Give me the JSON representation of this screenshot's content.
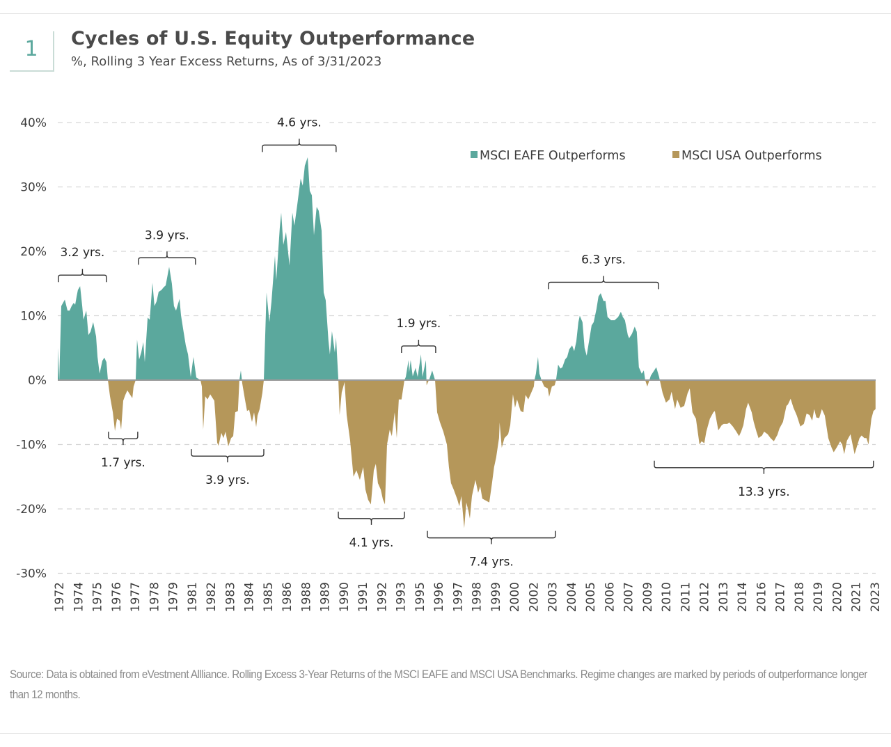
{
  "header": {
    "number": "1",
    "title": "Cycles of U.S. Equity Outperformance",
    "subtitle": "%, Rolling 3 Year Excess Returns, As of 3/31/2023"
  },
  "footer": {
    "source": "Source: Data is obtained from eVestment Allliance. Rolling Excess 3-Year Returns of the MSCI EAFE and MSCI USA Benchmarks. Regime changes are marked by periods of outperformance longer than 12 months."
  },
  "chart_data": {
    "type": "area",
    "title": "Cycles of U.S. Equity Outperformance",
    "subtitle": "%, Rolling 3 Year Excess Returns, As of 3/31/2023",
    "xlabel": "",
    "ylabel": "",
    "xlim": [
      1972.0,
      2023.25
    ],
    "ylim": [
      -30,
      40
    ],
    "grid": true,
    "legend_position": "top-right",
    "y_ticks": [
      40,
      30,
      20,
      10,
      0,
      -10,
      -20,
      -30
    ],
    "y_tick_labels": [
      "40%",
      "30%",
      "20%",
      "10%",
      "0%",
      "-10%",
      "-20%",
      "-30%"
    ],
    "x_tick_labels": [
      "1972",
      "1974",
      "1975",
      "1976",
      "1977",
      "1978",
      "1979",
      "1981",
      "1982",
      "1983",
      "1984",
      "1985",
      "1986",
      "1988",
      "1989",
      "1990",
      "1991",
      "1992",
      "1993",
      "1995",
      "1996",
      "1997",
      "1998",
      "1999",
      "2000",
      "2002",
      "2003",
      "2004",
      "2005",
      "2006",
      "2007",
      "2009",
      "2010",
      "2011",
      "2012",
      "2013",
      "2014",
      "2016",
      "2017",
      "2018",
      "2019",
      "2020",
      "2021",
      "2023"
    ],
    "legend": [
      {
        "name": "MSCI EAFE Outperforms",
        "color": "#5ba89d",
        "sign": "positive"
      },
      {
        "name": "MSCI USA Outperforms",
        "color": "#b5975a",
        "sign": "negative"
      }
    ],
    "series_points": [
      [
        1972.0,
        5
      ],
      [
        1972.09,
        0
      ],
      [
        1972.22,
        11.5
      ],
      [
        1972.44,
        12.5
      ],
      [
        1972.61,
        10.8
      ],
      [
        1972.74,
        10.8
      ],
      [
        1972.87,
        11.5
      ],
      [
        1973.0,
        12
      ],
      [
        1973.09,
        11.7
      ],
      [
        1973.18,
        13
      ],
      [
        1973.26,
        14
      ],
      [
        1973.4,
        14.6
      ],
      [
        1973.53,
        11.5
      ],
      [
        1973.61,
        9.4
      ],
      [
        1973.79,
        10.8
      ],
      [
        1973.92,
        7
      ],
      [
        1974.05,
        7.5
      ],
      [
        1974.22,
        9
      ],
      [
        1974.4,
        6.8
      ],
      [
        1974.49,
        3.6
      ],
      [
        1974.62,
        1
      ],
      [
        1974.79,
        3
      ],
      [
        1974.92,
        3.5
      ],
      [
        1975.05,
        2.8
      ],
      [
        1975.14,
        0
      ],
      [
        1975.27,
        -2.5
      ],
      [
        1975.45,
        -5
      ],
      [
        1975.58,
        -7.9
      ],
      [
        1975.71,
        -6
      ],
      [
        1975.88,
        -6.3
      ],
      [
        1975.97,
        -7.7
      ],
      [
        1976.1,
        -3.2
      ],
      [
        1976.23,
        -2.3
      ],
      [
        1976.36,
        -1.6
      ],
      [
        1976.54,
        -2.3
      ],
      [
        1976.67,
        -2.8
      ],
      [
        1976.75,
        -1
      ],
      [
        1976.88,
        0
      ],
      [
        1976.97,
        6.3
      ],
      [
        1977.1,
        3.2
      ],
      [
        1977.23,
        4.3
      ],
      [
        1977.36,
        5.9
      ],
      [
        1977.45,
        2.8
      ],
      [
        1977.63,
        9.7
      ],
      [
        1977.76,
        9.4
      ],
      [
        1977.93,
        15.1
      ],
      [
        1978.06,
        11.5
      ],
      [
        1978.19,
        12.2
      ],
      [
        1978.32,
        13.7
      ],
      [
        1978.5,
        14
      ],
      [
        1978.63,
        14.4
      ],
      [
        1978.76,
        14.7
      ],
      [
        1978.98,
        17.6
      ],
      [
        1979.15,
        15
      ],
      [
        1979.28,
        11.5
      ],
      [
        1979.41,
        10.8
      ],
      [
        1979.63,
        12.6
      ],
      [
        1979.72,
        10.1
      ],
      [
        1979.85,
        8
      ],
      [
        1980.02,
        5.4
      ],
      [
        1980.16,
        4
      ],
      [
        1980.33,
        0.5
      ],
      [
        1980.5,
        3.6
      ],
      [
        1980.68,
        0.4
      ],
      [
        1980.94,
        0
      ],
      [
        1981.03,
        -1
      ],
      [
        1981.11,
        -7.7
      ],
      [
        1981.24,
        -2.5
      ],
      [
        1981.38,
        -3
      ],
      [
        1981.55,
        -2.2
      ],
      [
        1981.68,
        -2.7
      ],
      [
        1981.81,
        -3.2
      ],
      [
        1981.99,
        -9.7
      ],
      [
        1982.07,
        -10.2
      ],
      [
        1982.25,
        -8.2
      ],
      [
        1982.38,
        -9
      ],
      [
        1982.51,
        -8
      ],
      [
        1982.68,
        -10.3
      ],
      [
        1982.86,
        -9
      ],
      [
        1982.99,
        -8.7
      ],
      [
        1983.12,
        -5
      ],
      [
        1983.29,
        -4.8
      ],
      [
        1983.38,
        0
      ],
      [
        1983.47,
        1.5
      ],
      [
        1983.56,
        -0.5
      ],
      [
        1983.73,
        -3
      ],
      [
        1983.86,
        -4.8
      ],
      [
        1983.99,
        -4.6
      ],
      [
        1984.17,
        -6.5
      ],
      [
        1984.3,
        -5
      ],
      [
        1984.43,
        -7.3
      ],
      [
        1984.52,
        -5.5
      ],
      [
        1984.65,
        -4.5
      ],
      [
        1984.82,
        -2
      ],
      [
        1984.91,
        0
      ],
      [
        1985.08,
        13.6
      ],
      [
        1985.26,
        9
      ],
      [
        1985.39,
        12.2
      ],
      [
        1985.61,
        19.3
      ],
      [
        1985.69,
        15.5
      ],
      [
        1985.91,
        23.6
      ],
      [
        1986.0,
        26
      ],
      [
        1986.13,
        21
      ],
      [
        1986.3,
        23
      ],
      [
        1986.52,
        17.8
      ],
      [
        1986.7,
        26
      ],
      [
        1986.83,
        24
      ],
      [
        1987.0,
        27.1
      ],
      [
        1987.22,
        31.3
      ],
      [
        1987.35,
        30.2
      ],
      [
        1987.48,
        33.3
      ],
      [
        1987.66,
        34.6
      ],
      [
        1987.79,
        29.4
      ],
      [
        1987.92,
        28.7
      ],
      [
        1988.05,
        22.5
      ],
      [
        1988.22,
        26.9
      ],
      [
        1988.35,
        26.3
      ],
      [
        1988.53,
        23.2
      ],
      [
        1988.66,
        13.6
      ],
      [
        1988.79,
        12.4
      ],
      [
        1988.96,
        6.2
      ],
      [
        1989.05,
        4
      ],
      [
        1989.18,
        7.6
      ],
      [
        1989.36,
        4.3
      ],
      [
        1989.44,
        6.6
      ],
      [
        1989.58,
        0
      ],
      [
        1989.66,
        -5.4
      ],
      [
        1989.79,
        -1.9
      ],
      [
        1989.97,
        -0.3
      ],
      [
        1990.1,
        -5.4
      ],
      [
        1990.32,
        -9.4
      ],
      [
        1990.53,
        -15
      ],
      [
        1990.71,
        -14
      ],
      [
        1990.93,
        -15.5
      ],
      [
        1991.14,
        -13.5
      ],
      [
        1991.28,
        -17
      ],
      [
        1991.45,
        -18.6
      ],
      [
        1991.62,
        -19.3
      ],
      [
        1991.8,
        -14
      ],
      [
        1991.93,
        -13
      ],
      [
        1992.06,
        -16
      ],
      [
        1992.24,
        -17
      ],
      [
        1992.37,
        -18.5
      ],
      [
        1992.5,
        -19.3
      ],
      [
        1992.63,
        -10
      ],
      [
        1992.8,
        -7.7
      ],
      [
        1992.93,
        -8.7
      ],
      [
        1993.11,
        -5
      ],
      [
        1993.24,
        -9
      ],
      [
        1993.37,
        -3
      ],
      [
        1993.54,
        -3
      ],
      [
        1993.72,
        0
      ],
      [
        1993.81,
        0.5
      ],
      [
        1993.98,
        3.1
      ],
      [
        1994.02,
        1.2
      ],
      [
        1994.11,
        3.1
      ],
      [
        1994.24,
        0.6
      ],
      [
        1994.42,
        1.9
      ],
      [
        1994.55,
        0.5
      ],
      [
        1994.76,
        4
      ],
      [
        1994.85,
        0.5
      ],
      [
        1995.07,
        3.1
      ],
      [
        1995.11,
        -0.8
      ],
      [
        1995.29,
        0.2
      ],
      [
        1995.46,
        1.5
      ],
      [
        1995.64,
        0
      ],
      [
        1995.77,
        -5
      ],
      [
        1995.94,
        -6.5
      ],
      [
        1996.16,
        -8
      ],
      [
        1996.38,
        -10
      ],
      [
        1996.51,
        -13.5
      ],
      [
        1996.64,
        -16
      ],
      [
        1996.81,
        -17
      ],
      [
        1997.03,
        -18.5
      ],
      [
        1997.16,
        -19.6
      ],
      [
        1997.29,
        -18
      ],
      [
        1997.47,
        -23
      ],
      [
        1997.6,
        -19
      ],
      [
        1997.73,
        -20.3
      ],
      [
        1997.82,
        -21.5
      ],
      [
        1997.95,
        -18
      ],
      [
        1998.17,
        -15.5
      ],
      [
        1998.34,
        -17.5
      ],
      [
        1998.47,
        -16.5
      ],
      [
        1998.6,
        -18.4
      ],
      [
        1998.82,
        -18.7
      ],
      [
        1999.04,
        -19
      ],
      [
        1999.21,
        -16
      ],
      [
        1999.34,
        -13.5
      ],
      [
        1999.47,
        -12
      ],
      [
        1999.65,
        -9
      ],
      [
        1999.69,
        -6.6
      ],
      [
        1999.82,
        -10.5
      ],
      [
        1999.99,
        -9
      ],
      [
        2000.22,
        -8.4
      ],
      [
        2000.35,
        -7
      ],
      [
        2000.52,
        -2.2
      ],
      [
        2000.65,
        -4.3
      ],
      [
        2000.78,
        -3
      ],
      [
        2001.0,
        -4.8
      ],
      [
        2001.17,
        -5
      ],
      [
        2001.31,
        -2.3
      ],
      [
        2001.48,
        -3
      ],
      [
        2001.66,
        -2
      ],
      [
        2001.83,
        -1
      ],
      [
        2001.87,
        0
      ],
      [
        2001.96,
        1
      ],
      [
        2002.09,
        3.6
      ],
      [
        2002.18,
        1
      ],
      [
        2002.31,
        0
      ],
      [
        2002.48,
        -1
      ],
      [
        2002.7,
        -1.3
      ],
      [
        2002.79,
        -2.6
      ],
      [
        2002.96,
        -1
      ],
      [
        2003.14,
        -0.8
      ],
      [
        2003.22,
        0
      ],
      [
        2003.35,
        2.4
      ],
      [
        2003.49,
        1.8
      ],
      [
        2003.62,
        2
      ],
      [
        2003.79,
        3.2
      ],
      [
        2003.92,
        3.6
      ],
      [
        2004.05,
        4.8
      ],
      [
        2004.23,
        5.4
      ],
      [
        2004.36,
        4.5
      ],
      [
        2004.49,
        6
      ],
      [
        2004.62,
        9
      ],
      [
        2004.71,
        10
      ],
      [
        2004.88,
        9
      ],
      [
        2005.01,
        5
      ],
      [
        2005.14,
        3.8
      ],
      [
        2005.32,
        6.5
      ],
      [
        2005.45,
        8.5
      ],
      [
        2005.58,
        9
      ],
      [
        2005.75,
        11
      ],
      [
        2005.88,
        13
      ],
      [
        2006.02,
        13.5
      ],
      [
        2006.19,
        12.3
      ],
      [
        2006.32,
        12.3
      ],
      [
        2006.45,
        9.8
      ],
      [
        2006.67,
        9.3
      ],
      [
        2006.89,
        9.3
      ],
      [
        2007.11,
        9.8
      ],
      [
        2007.28,
        10.6
      ],
      [
        2007.41,
        9.8
      ],
      [
        2007.54,
        9.3
      ],
      [
        2007.72,
        7
      ],
      [
        2007.8,
        6.5
      ],
      [
        2007.98,
        7.2
      ],
      [
        2008.15,
        8.3
      ],
      [
        2008.28,
        7.5
      ],
      [
        2008.41,
        2
      ],
      [
        2008.59,
        1
      ],
      [
        2008.72,
        1.5
      ],
      [
        2008.81,
        0
      ],
      [
        2008.94,
        -1
      ],
      [
        2009.07,
        0
      ],
      [
        2009.16,
        0.7
      ],
      [
        2009.37,
        1.5
      ],
      [
        2009.5,
        2
      ],
      [
        2009.68,
        0.5
      ],
      [
        2009.72,
        0
      ],
      [
        2009.9,
        -2
      ],
      [
        2010.11,
        -3.5
      ],
      [
        2010.33,
        -3
      ],
      [
        2010.46,
        -1.8
      ],
      [
        2010.68,
        -4.5
      ],
      [
        2010.81,
        -3
      ],
      [
        2011.03,
        -4.3
      ],
      [
        2011.25,
        -4
      ],
      [
        2011.47,
        -2
      ],
      [
        2011.6,
        -1.3
      ],
      [
        2011.77,
        -5
      ],
      [
        2011.99,
        -6
      ],
      [
        2012.21,
        -10
      ],
      [
        2012.34,
        -9.5
      ],
      [
        2012.51,
        -9.8
      ],
      [
        2012.64,
        -8
      ],
      [
        2012.86,
        -6
      ],
      [
        2013.08,
        -5
      ],
      [
        2013.17,
        -4.8
      ],
      [
        2013.39,
        -7.8
      ],
      [
        2013.6,
        -7
      ],
      [
        2013.73,
        -6.8
      ],
      [
        2013.95,
        -6.8
      ],
      [
        2014.08,
        -6.6
      ],
      [
        2014.3,
        -7.2
      ],
      [
        2014.52,
        -8
      ],
      [
        2014.69,
        -8.7
      ],
      [
        2014.82,
        -8
      ],
      [
        2014.96,
        -7
      ],
      [
        2015.13,
        -4.5
      ],
      [
        2015.26,
        -3.5
      ],
      [
        2015.48,
        -5
      ],
      [
        2015.61,
        -6.5
      ],
      [
        2015.78,
        -8
      ],
      [
        2015.91,
        -9
      ],
      [
        2016.13,
        -8.6
      ],
      [
        2016.26,
        -8
      ],
      [
        2016.48,
        -8.4
      ],
      [
        2016.66,
        -9
      ],
      [
        2016.87,
        -9.5
      ],
      [
        2017.09,
        -8.5
      ],
      [
        2017.22,
        -7.5
      ],
      [
        2017.44,
        -6.5
      ],
      [
        2017.66,
        -4
      ],
      [
        2017.75,
        -3.8
      ],
      [
        2017.92,
        -2.9
      ],
      [
        2018.1,
        -4.3
      ],
      [
        2018.31,
        -5.5
      ],
      [
        2018.53,
        -7.2
      ],
      [
        2018.75,
        -6.8
      ],
      [
        2018.92,
        -5.2
      ],
      [
        2019.1,
        -5.4
      ],
      [
        2019.27,
        -6.3
      ],
      [
        2019.4,
        -4.5
      ],
      [
        2019.53,
        -5.8
      ],
      [
        2019.71,
        -5.9
      ],
      [
        2019.88,
        -4.5
      ],
      [
        2020.06,
        -5.5
      ],
      [
        2020.28,
        -9
      ],
      [
        2020.49,
        -10.5
      ],
      [
        2020.62,
        -11.2
      ],
      [
        2020.8,
        -10.5
      ],
      [
        2021.02,
        -9.5
      ],
      [
        2021.15,
        -10
      ],
      [
        2021.28,
        -11.5
      ],
      [
        2021.45,
        -9.4
      ],
      [
        2021.67,
        -8.4
      ],
      [
        2021.8,
        -10
      ],
      [
        2021.93,
        -11.5
      ],
      [
        2022.11,
        -10
      ],
      [
        2022.24,
        -9
      ],
      [
        2022.37,
        -8.6
      ],
      [
        2022.54,
        -9
      ],
      [
        2022.67,
        -9
      ],
      [
        2022.8,
        -10
      ],
      [
        2022.98,
        -6
      ],
      [
        2023.11,
        -4.8
      ],
      [
        2023.24,
        -4.5
      ]
    ],
    "annotations": [
      {
        "label": "3.2 yrs.",
        "start": 1972.04,
        "end": 1975.05,
        "level": 16.3,
        "side": "above"
      },
      {
        "label": "1.7 yrs.",
        "start": 1975.18,
        "end": 1977.01,
        "level": -9.1,
        "side": "below"
      },
      {
        "label": "3.9 yrs.",
        "start": 1977.06,
        "end": 1980.63,
        "level": 19.0,
        "side": "above"
      },
      {
        "label": "3.9 yrs.",
        "start": 1980.37,
        "end": 1984.91,
        "level": -11.8,
        "side": "below"
      },
      {
        "label": "4.6 yrs.",
        "start": 1984.82,
        "end": 1989.44,
        "level": 36.5,
        "side": "above"
      },
      {
        "label": "4.1 yrs.",
        "start": 1989.58,
        "end": 1993.72,
        "level": -21.5,
        "side": "below"
      },
      {
        "label": "1.9 yrs.",
        "start": 1993.54,
        "end": 1995.68,
        "level": 5.3,
        "side": "above"
      },
      {
        "label": "7.4 yrs.",
        "start": 1995.16,
        "end": 2003.18,
        "level": -24.5,
        "side": "below"
      },
      {
        "label": "6.3 yrs.",
        "start": 2002.75,
        "end": 2009.64,
        "level": 15.2,
        "side": "above"
      },
      {
        "label": "13.3 yrs.",
        "start": 2009.38,
        "end": 2023.11,
        "level": -13.6,
        "side": "below"
      }
    ]
  }
}
